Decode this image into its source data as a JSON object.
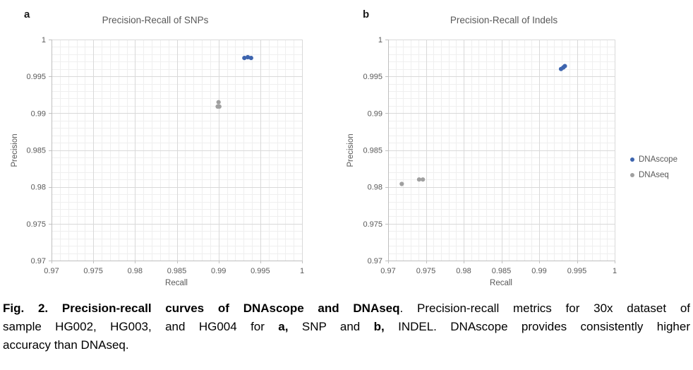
{
  "figure": {
    "panels": [
      {
        "label": "a"
      },
      {
        "label": "b"
      }
    ],
    "legend": {
      "items": [
        {
          "label": "DNAscope",
          "color": "#3D64AE"
        },
        {
          "label": "DNAseq",
          "color": "#A0A0A0"
        }
      ]
    }
  },
  "chart_data": [
    {
      "type": "scatter",
      "title": "Precision-Recall of SNPs",
      "xlabel": "Recall",
      "ylabel": "Precision",
      "xlim": [
        0.97,
        1
      ],
      "ylim": [
        0.97,
        1
      ],
      "xticks": [
        "0.97",
        "0.975",
        "0.98",
        "0.985",
        "0.99",
        "0.995",
        "1"
      ],
      "yticks": [
        "0.97",
        "0.975",
        "0.98",
        "0.985",
        "0.99",
        "0.995",
        "1"
      ],
      "minor_step": 0.001,
      "grid": true,
      "legend_position": "right",
      "series": [
        {
          "name": "DNAscope",
          "color": "#3D64AE",
          "points": [
            [
              0.9931,
              0.9975
            ],
            [
              0.9935,
              0.9976
            ],
            [
              0.9939,
              0.9975
            ]
          ]
        },
        {
          "name": "DNAseq",
          "color": "#A0A0A0",
          "points": [
            [
              0.99,
              0.9915
            ],
            [
              0.9899,
              0.9909
            ],
            [
              0.9901,
              0.9909
            ]
          ]
        }
      ]
    },
    {
      "type": "scatter",
      "title": "Precision-Recall of Indels",
      "xlabel": "Recall",
      "ylabel": "Precision",
      "xlim": [
        0.97,
        1
      ],
      "ylim": [
        0.97,
        1
      ],
      "xticks": [
        "0.97",
        "0.975",
        "0.98",
        "0.985",
        "0.99",
        "0.995",
        "1"
      ],
      "yticks": [
        "0.97",
        "0.975",
        "0.98",
        "0.985",
        "0.99",
        "0.995",
        "1"
      ],
      "minor_step": 0.001,
      "grid": true,
      "legend_position": "right",
      "series": [
        {
          "name": "DNAscope",
          "color": "#3D64AE",
          "points": [
            [
              0.9929,
              0.996
            ],
            [
              0.9932,
              0.9962
            ],
            [
              0.9934,
              0.9964
            ]
          ]
        },
        {
          "name": "DNAseq",
          "color": "#A0A0A0",
          "points": [
            [
              0.9718,
              0.9804
            ],
            [
              0.9741,
              0.981
            ],
            [
              0.9746,
              0.981
            ]
          ]
        }
      ]
    }
  ],
  "caption": {
    "lines": [
      {
        "segments": [
          {
            "text": "Fig. 2. Precision-recall curves of DNAscope and DNAseq",
            "bold": true
          },
          {
            "text": ". Precision-recall metrics for 30x dataset of",
            "bold": false
          }
        ]
      },
      {
        "segments": [
          {
            "text": "sample HG002, HG003, and HG004 for ",
            "bold": false
          },
          {
            "text": "a,",
            "bold": true
          },
          {
            "text": " SNP and ",
            "bold": false
          },
          {
            "text": "b,",
            "bold": true
          },
          {
            "text": " INDEL. DNAscope provides consistently higher",
            "bold": false
          }
        ]
      },
      {
        "segments": [
          {
            "text": "accuracy than DNAseq.",
            "bold": false
          }
        ]
      }
    ]
  }
}
